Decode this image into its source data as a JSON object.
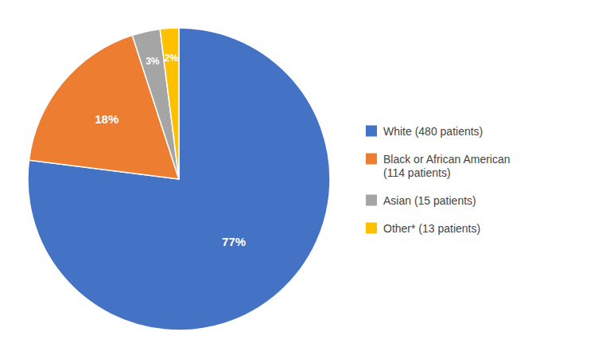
{
  "chart_data": {
    "type": "pie",
    "categories": [
      "White (480 patients)",
      "Black or African American\n(114 patients)",
      "Asian (15 patients)",
      "Other* (13 patients)"
    ],
    "values": [
      77,
      18,
      3,
      2
    ],
    "value_labels": [
      "77%",
      "18%",
      "3%",
      "2%"
    ],
    "colors": [
      "#4472C4",
      "#ED7D31",
      "#A5A5A5",
      "#FFC000"
    ],
    "data_labels": true,
    "legend": "right"
  }
}
